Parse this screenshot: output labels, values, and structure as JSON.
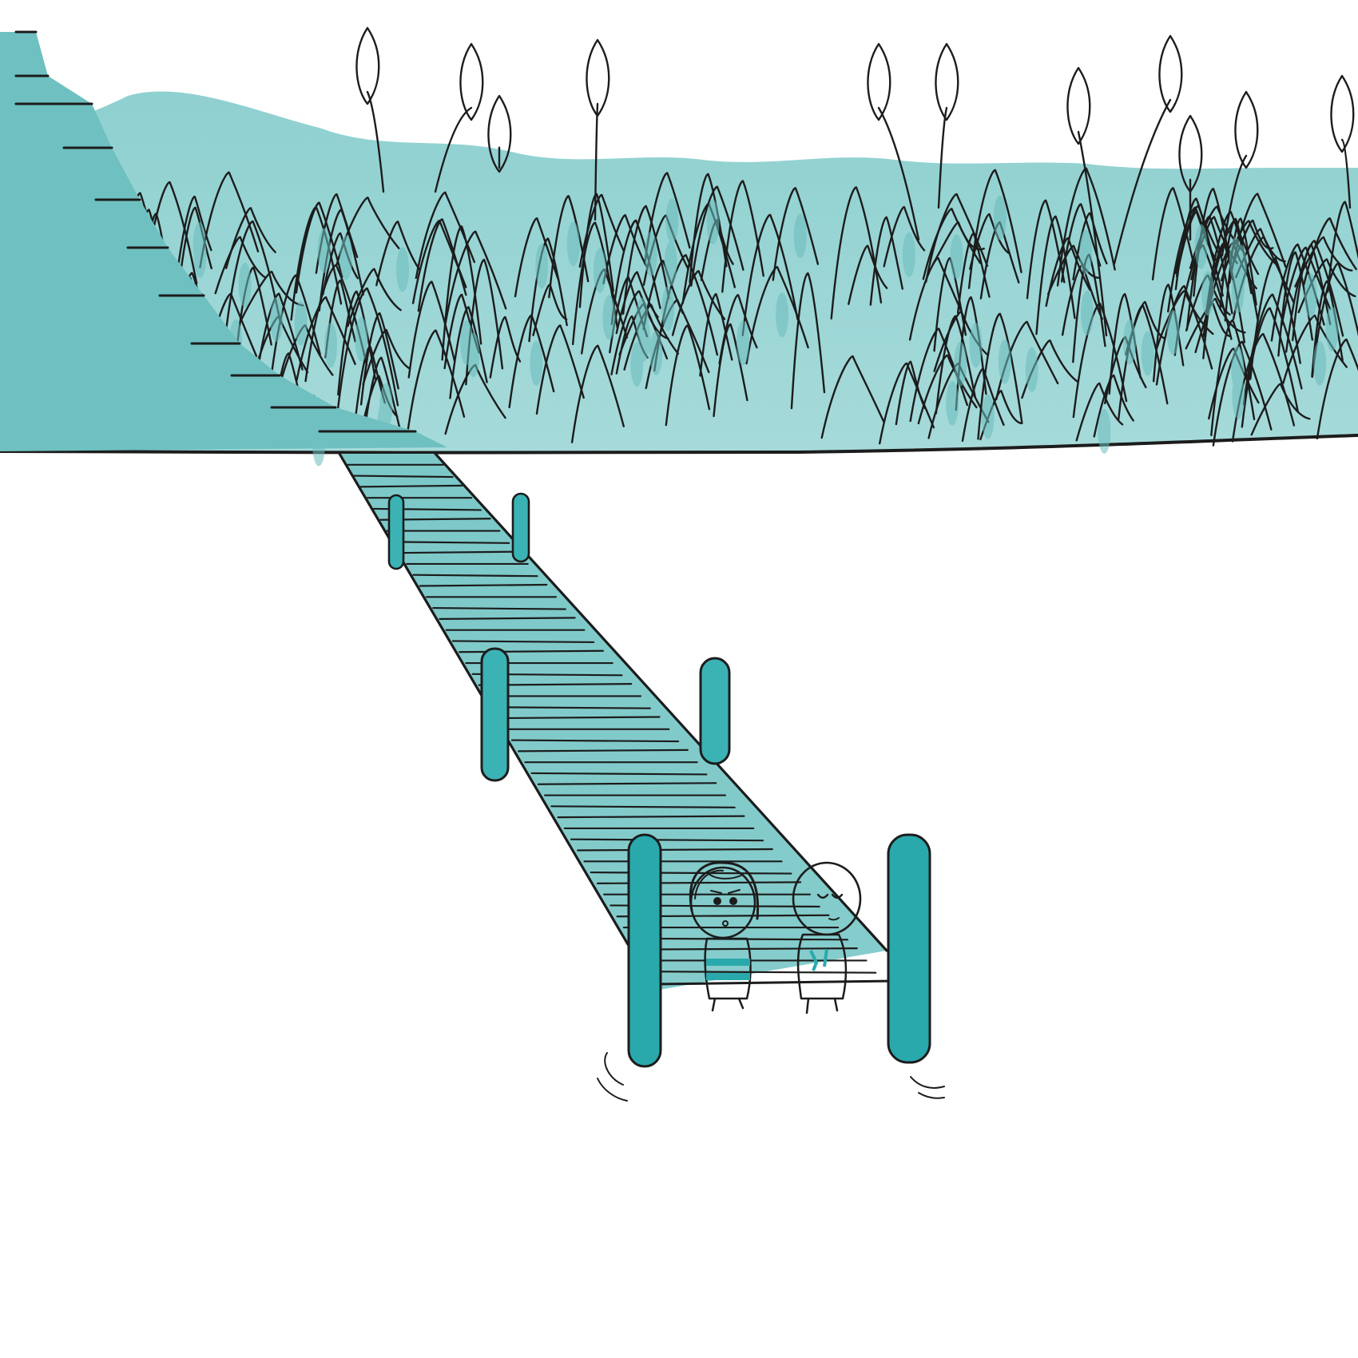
{
  "scene": {
    "description_type": "illustration",
    "palette": {
      "background": "#ffffff",
      "teal_light": "#a9d9d9",
      "teal_mid": "#7cc6c6",
      "teal_dark": "#3bb3b5",
      "teal_deep": "#2aa9ac",
      "ink": "#1c1c1c"
    },
    "elements": [
      "reed-bank",
      "cattail-heads",
      "staircase",
      "boardwalk-pier",
      "mooring-posts",
      "child-girl",
      "child-boy",
      "water-ripples"
    ]
  }
}
